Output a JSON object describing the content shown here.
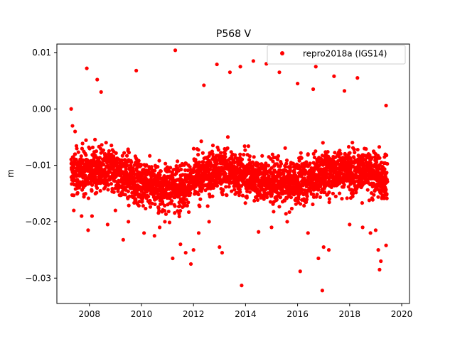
{
  "chart_data": {
    "type": "scatter",
    "title": "P568 V",
    "xlabel": "",
    "ylabel": "m",
    "xlim": [
      2006.75,
      2020.3
    ],
    "ylim": [
      -0.0345,
      0.0115
    ],
    "xticks": [
      2008,
      2010,
      2012,
      2014,
      2016,
      2018,
      2020
    ],
    "xtick_labels": [
      "2008",
      "2010",
      "2012",
      "2014",
      "2016",
      "2018",
      "2020"
    ],
    "yticks": [
      0.01,
      0.0,
      -0.01,
      -0.02,
      -0.03
    ],
    "ytick_labels": [
      "0.01",
      "0.00",
      "−0.01",
      "−0.02",
      "−0.03"
    ],
    "grid": false,
    "legend_position": "top-right",
    "series": [
      {
        "name": "repro2018a (IGS14)",
        "color": "#ff0000",
        "marker": "circle",
        "x_range": [
          2007.3,
          2019.45
        ],
        "typical_y_range": [
          -0.018,
          -0.006
        ],
        "points": [
          [
            2007.3,
            0.0
          ],
          [
            2007.35,
            -0.003
          ],
          [
            2007.4,
            -0.018
          ],
          [
            2007.45,
            -0.004
          ],
          [
            2007.7,
            -0.019
          ],
          [
            2007.9,
            0.0072
          ],
          [
            2007.95,
            -0.0215
          ],
          [
            2008.1,
            -0.019
          ],
          [
            2008.3,
            0.0052
          ],
          [
            2008.45,
            0.003
          ],
          [
            2008.7,
            -0.0205
          ],
          [
            2009.0,
            -0.018
          ],
          [
            2009.3,
            -0.0232
          ],
          [
            2009.5,
            -0.02
          ],
          [
            2009.8,
            0.0068
          ],
          [
            2010.1,
            -0.022
          ],
          [
            2010.5,
            -0.0225
          ],
          [
            2010.7,
            -0.021
          ],
          [
            2010.9,
            -0.02
          ],
          [
            2011.2,
            -0.0265
          ],
          [
            2011.3,
            0.0104
          ],
          [
            2011.5,
            -0.024
          ],
          [
            2011.7,
            -0.0255
          ],
          [
            2011.9,
            -0.0275
          ],
          [
            2012.0,
            -0.025
          ],
          [
            2012.2,
            -0.022
          ],
          [
            2012.4,
            0.0042
          ],
          [
            2012.6,
            -0.02
          ],
          [
            2012.9,
            0.0079
          ],
          [
            2013.0,
            -0.0245
          ],
          [
            2013.1,
            -0.0255
          ],
          [
            2013.4,
            0.0065
          ],
          [
            2013.8,
            0.0075
          ],
          [
            2013.85,
            -0.0313
          ],
          [
            2014.3,
            0.0085
          ],
          [
            2014.5,
            -0.0218
          ],
          [
            2014.8,
            0.008
          ],
          [
            2015.0,
            -0.021
          ],
          [
            2015.3,
            0.0065
          ],
          [
            2015.6,
            -0.02
          ],
          [
            2016.0,
            0.0045
          ],
          [
            2016.1,
            -0.0288
          ],
          [
            2016.4,
            -0.022
          ],
          [
            2016.6,
            0.0035
          ],
          [
            2016.7,
            0.0075
          ],
          [
            2016.8,
            -0.0265
          ],
          [
            2016.95,
            -0.0322
          ],
          [
            2017.0,
            -0.0245
          ],
          [
            2017.2,
            -0.025
          ],
          [
            2017.4,
            0.0058
          ],
          [
            2017.8,
            0.0032
          ],
          [
            2018.0,
            -0.0205
          ],
          [
            2018.3,
            0.0055
          ],
          [
            2018.5,
            -0.021
          ],
          [
            2018.8,
            -0.022
          ],
          [
            2019.0,
            -0.0215
          ],
          [
            2019.1,
            -0.025
          ],
          [
            2019.15,
            -0.0285
          ],
          [
            2019.2,
            -0.027
          ],
          [
            2019.4,
            0.0006
          ],
          [
            2019.4,
            -0.0242
          ]
        ]
      }
    ]
  }
}
